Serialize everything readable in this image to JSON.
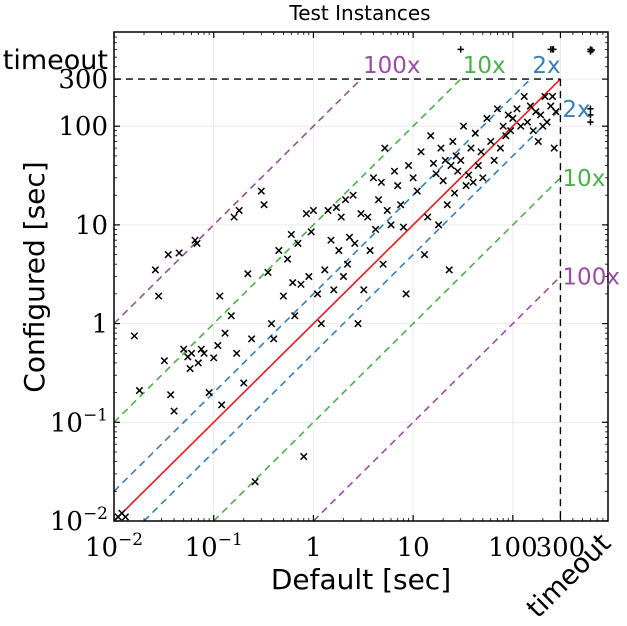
{
  "chart_data": {
    "type": "scatter",
    "title": "Test Instances",
    "xlabel": "Default [sec]",
    "ylabel": "Configured [sec]",
    "x_scale": "log",
    "y_scale": "log",
    "xlim": [
      0.01,
      900
    ],
    "ylim": [
      0.01,
      900
    ],
    "x_ticks": [
      {
        "value": 0.01,
        "base": "10",
        "exp": "−2"
      },
      {
        "value": 0.1,
        "base": "10",
        "exp": "−1"
      },
      {
        "value": 1,
        "base": "1",
        "exp": ""
      },
      {
        "value": 10,
        "base": "10",
        "exp": ""
      },
      {
        "value": 100,
        "base": "100",
        "exp": ""
      },
      {
        "value": 300,
        "base": "300",
        "exp": ""
      }
    ],
    "y_ticks": [
      {
        "value": 0.01,
        "base": "10",
        "exp": "−2"
      },
      {
        "value": 0.1,
        "base": "10",
        "exp": "−1"
      },
      {
        "value": 1,
        "base": "1",
        "exp": ""
      },
      {
        "value": 10,
        "base": "10",
        "exp": ""
      },
      {
        "value": 100,
        "base": "100",
        "exp": ""
      },
      {
        "value": 300,
        "base": "300",
        "exp": ""
      }
    ],
    "timeout_value": 300,
    "timeout_label": "timeout",
    "timeout_plot_value": 600,
    "grid": true,
    "colors": {
      "diagonal": "#e41a1c",
      "x2": "#377eb8",
      "x10": "#4daf4a",
      "x100": "#984ea3",
      "markers": "#000000",
      "timeout_line": "#000000"
    },
    "reference_lines": [
      {
        "factor": 2,
        "label": "2x",
        "color": "#377eb8"
      },
      {
        "factor": 10,
        "label": "10x",
        "color": "#4daf4a"
      },
      {
        "factor": 100,
        "label": "100x",
        "color": "#984ea3"
      }
    ],
    "points": [
      [
        0.011,
        0.011
      ],
      [
        0.012,
        0.012
      ],
      [
        0.013,
        0.011
      ],
      [
        0.016,
        0.75
      ],
      [
        0.018,
        0.21
      ],
      [
        0.026,
        3.5
      ],
      [
        0.028,
        1.9
      ],
      [
        0.032,
        0.42
      ],
      [
        0.035,
        5.0
      ],
      [
        0.037,
        0.19
      ],
      [
        0.04,
        0.13
      ],
      [
        0.045,
        5.2
      ],
      [
        0.05,
        0.55
      ],
      [
        0.055,
        0.46
      ],
      [
        0.058,
        0.35
      ],
      [
        0.06,
        0.5
      ],
      [
        0.065,
        7.0
      ],
      [
        0.068,
        6.5
      ],
      [
        0.07,
        0.4
      ],
      [
        0.075,
        0.55
      ],
      [
        0.08,
        0.5
      ],
      [
        0.09,
        0.2
      ],
      [
        0.1,
        0.45
      ],
      [
        0.11,
        0.6
      ],
      [
        0.115,
        1.9
      ],
      [
        0.12,
        0.15
      ],
      [
        0.13,
        0.8
      ],
      [
        0.15,
        1.2
      ],
      [
        0.16,
        12
      ],
      [
        0.17,
        0.5
      ],
      [
        0.18,
        14
      ],
      [
        0.2,
        0.25
      ],
      [
        0.22,
        3.2
      ],
      [
        0.24,
        0.7
      ],
      [
        0.26,
        0.025
      ],
      [
        0.3,
        22
      ],
      [
        0.32,
        16
      ],
      [
        0.35,
        3.3
      ],
      [
        0.38,
        1.0
      ],
      [
        0.4,
        0.7
      ],
      [
        0.45,
        5.5
      ],
      [
        0.5,
        1.9
      ],
      [
        0.55,
        4.5
      ],
      [
        0.6,
        8.0
      ],
      [
        0.62,
        2.6
      ],
      [
        0.65,
        1.2
      ],
      [
        0.7,
        6.5
      ],
      [
        0.75,
        2.5
      ],
      [
        0.8,
        0.045
      ],
      [
        0.85,
        13
      ],
      [
        0.9,
        3.0
      ],
      [
        0.95,
        8.5
      ],
      [
        1.0,
        14
      ],
      [
        1.1,
        2.0
      ],
      [
        1.2,
        1.0
      ],
      [
        1.3,
        3.5
      ],
      [
        1.4,
        14
      ],
      [
        1.5,
        7.0
      ],
      [
        1.6,
        2.2
      ],
      [
        1.7,
        15
      ],
      [
        1.8,
        5.5
      ],
      [
        1.9,
        12
      ],
      [
        2.0,
        3.0
      ],
      [
        2.1,
        18
      ],
      [
        2.2,
        4.0
      ],
      [
        2.3,
        7.5
      ],
      [
        2.5,
        20
      ],
      [
        2.6,
        6.5
      ],
      [
        2.8,
        1.0
      ],
      [
        3.0,
        13
      ],
      [
        3.2,
        2.2
      ],
      [
        3.5,
        12
      ],
      [
        3.7,
        5.5
      ],
      [
        4.0,
        30
      ],
      [
        4.2,
        9.0
      ],
      [
        4.5,
        18
      ],
      [
        4.8,
        27
      ],
      [
        5.0,
        4.0
      ],
      [
        5.2,
        60
      ],
      [
        5.5,
        14
      ],
      [
        6.0,
        10
      ],
      [
        6.5,
        35
      ],
      [
        7.0,
        25
      ],
      [
        7.5,
        16
      ],
      [
        8.0,
        9.5
      ],
      [
        8.5,
        2.0
      ],
      [
        9.0,
        40
      ],
      [
        10,
        30
      ],
      [
        11,
        22
      ],
      [
        12,
        55
      ],
      [
        13,
        5.0
      ],
      [
        14,
        12
      ],
      [
        15,
        80
      ],
      [
        16,
        42
      ],
      [
        17,
        33
      ],
      [
        18,
        10
      ],
      [
        19,
        60
      ],
      [
        20,
        28
      ],
      [
        21,
        45
      ],
      [
        22,
        16
      ],
      [
        23,
        3.5
      ],
      [
        24,
        40
      ],
      [
        25,
        70
      ],
      [
        26,
        21
      ],
      [
        27,
        50
      ],
      [
        28,
        35
      ],
      [
        30,
        45
      ],
      [
        32,
        100
      ],
      [
        34,
        25
      ],
      [
        36,
        32
      ],
      [
        38,
        60
      ],
      [
        40,
        27
      ],
      [
        42,
        85
      ],
      [
        45,
        40
      ],
      [
        48,
        55
      ],
      [
        50,
        30
      ],
      [
        55,
        120
      ],
      [
        60,
        70
      ],
      [
        65,
        45
      ],
      [
        70,
        150
      ],
      [
        75,
        60
      ],
      [
        80,
        100
      ],
      [
        85,
        80
      ],
      [
        90,
        130
      ],
      [
        95,
        90
      ],
      [
        100,
        120
      ],
      [
        110,
        150
      ],
      [
        120,
        100
      ],
      [
        130,
        200
      ],
      [
        140,
        110
      ],
      [
        150,
        160
      ],
      [
        160,
        90
      ],
      [
        170,
        140
      ],
      [
        180,
        70
      ],
      [
        190,
        130
      ],
      [
        200,
        100
      ],
      [
        210,
        200
      ],
      [
        220,
        110
      ],
      [
        240,
        160
      ],
      [
        250,
        200
      ],
      [
        260,
        60
      ],
      [
        270,
        140
      ],
      [
        600,
        130
      ],
      [
        600,
        150
      ],
      [
        600,
        110
      ],
      [
        600,
        600
      ],
      [
        600,
        570
      ],
      [
        620,
        590
      ],
      [
        240,
        600
      ],
      [
        250,
        600
      ],
      [
        255,
        600
      ],
      [
        30,
        600
      ]
    ]
  }
}
